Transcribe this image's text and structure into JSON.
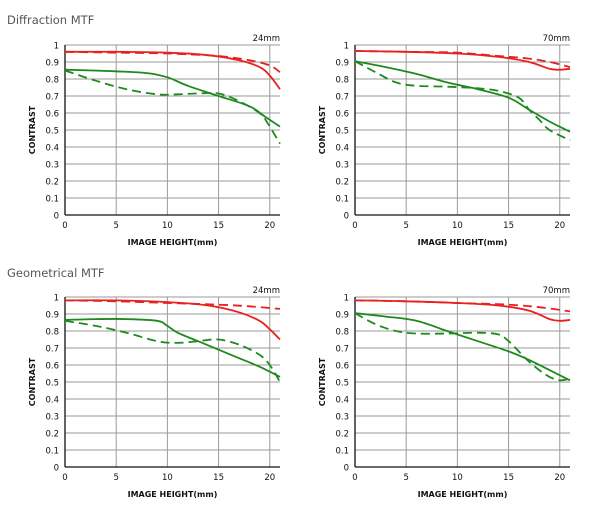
{
  "sections": {
    "diffraction": "Diffraction MTF",
    "geometrical": "Geometrical MTF"
  },
  "colors": {
    "red": "#e8201e",
    "green": "#1e8a1e",
    "grid": "#9a9a9a",
    "axis": "#111111"
  },
  "chart_data": [
    {
      "type": "line",
      "section": "Diffraction MTF",
      "focal": "24mm",
      "xlabel": "IMAGE HEIGHT(mm)",
      "ylabel": "CONTRAST",
      "xlim": [
        0,
        21
      ],
      "ylim": [
        0,
        1
      ],
      "xticks": [
        0,
        5,
        10,
        15,
        20
      ],
      "yticks": [
        0,
        0.1,
        0.2,
        0.3,
        0.4,
        0.5,
        0.6,
        0.7,
        0.8,
        0.9,
        1
      ],
      "series": [
        {
          "color": "red",
          "style": "solid",
          "x": [
            0,
            5,
            10,
            14,
            17,
            19,
            20,
            21
          ],
          "y": [
            0.96,
            0.96,
            0.955,
            0.94,
            0.91,
            0.87,
            0.82,
            0.74
          ]
        },
        {
          "color": "red",
          "style": "dashed",
          "x": [
            0,
            5,
            10,
            15,
            18,
            20,
            21
          ],
          "y": [
            0.96,
            0.955,
            0.95,
            0.935,
            0.91,
            0.88,
            0.84
          ]
        },
        {
          "color": "green",
          "style": "solid",
          "x": [
            0,
            5,
            8,
            10,
            12,
            15,
            18,
            19.5,
            21
          ],
          "y": [
            0.855,
            0.845,
            0.835,
            0.81,
            0.76,
            0.7,
            0.64,
            0.58,
            0.52
          ]
        },
        {
          "color": "green",
          "style": "dashed",
          "x": [
            0,
            3,
            6,
            9,
            11,
            13,
            15,
            17,
            19,
            19.8,
            20.5,
            21
          ],
          "y": [
            0.85,
            0.79,
            0.74,
            0.71,
            0.71,
            0.715,
            0.715,
            0.67,
            0.6,
            0.54,
            0.47,
            0.42
          ]
        }
      ]
    },
    {
      "type": "line",
      "section": "Diffraction MTF",
      "focal": "70mm",
      "xlabel": "IMAGE HEIGHT(mm)",
      "ylabel": "CONTRAST",
      "xlim": [
        0,
        21
      ],
      "ylim": [
        0,
        1
      ],
      "xticks": [
        0,
        5,
        10,
        15,
        20
      ],
      "yticks": [
        0,
        0.1,
        0.2,
        0.3,
        0.4,
        0.5,
        0.6,
        0.7,
        0.8,
        0.9,
        1
      ],
      "series": [
        {
          "color": "red",
          "style": "solid",
          "x": [
            0,
            5,
            10,
            14,
            17,
            19,
            20,
            21
          ],
          "y": [
            0.965,
            0.96,
            0.95,
            0.93,
            0.9,
            0.86,
            0.855,
            0.86
          ]
        },
        {
          "color": "red",
          "style": "dashed",
          "x": [
            0,
            5,
            10,
            14,
            17,
            19,
            21
          ],
          "y": [
            0.965,
            0.96,
            0.955,
            0.935,
            0.92,
            0.9,
            0.87
          ]
        },
        {
          "color": "green",
          "style": "solid",
          "x": [
            0,
            3,
            6,
            9,
            12,
            15,
            17,
            19,
            21
          ],
          "y": [
            0.905,
            0.87,
            0.83,
            0.78,
            0.74,
            0.69,
            0.62,
            0.55,
            0.49
          ]
        },
        {
          "color": "green",
          "style": "dashed",
          "x": [
            0,
            2,
            4,
            6,
            9,
            12,
            14,
            16,
            17,
            18,
            19,
            21
          ],
          "y": [
            0.905,
            0.84,
            0.78,
            0.76,
            0.755,
            0.745,
            0.73,
            0.69,
            0.62,
            0.56,
            0.5,
            0.44
          ]
        }
      ]
    },
    {
      "type": "line",
      "section": "Geometrical MTF",
      "focal": "24mm",
      "xlabel": "IMAGE HEIGHT(mm)",
      "ylabel": "CONTRAST",
      "xlim": [
        0,
        21
      ],
      "ylim": [
        0,
        1
      ],
      "xticks": [
        0,
        5,
        10,
        15,
        20
      ],
      "yticks": [
        0,
        0.1,
        0.2,
        0.3,
        0.4,
        0.5,
        0.6,
        0.7,
        0.8,
        0.9,
        1
      ],
      "series": [
        {
          "color": "red",
          "style": "solid",
          "x": [
            0,
            5,
            10,
            14,
            17,
            19,
            20,
            21
          ],
          "y": [
            0.98,
            0.98,
            0.97,
            0.95,
            0.91,
            0.86,
            0.81,
            0.75
          ]
        },
        {
          "color": "red",
          "style": "dashed",
          "x": [
            0,
            5,
            10,
            15,
            18,
            21
          ],
          "y": [
            0.98,
            0.975,
            0.965,
            0.955,
            0.945,
            0.93
          ]
        },
        {
          "color": "green",
          "style": "solid",
          "x": [
            0,
            3,
            6,
            9,
            10,
            11,
            13,
            15,
            17,
            19,
            21
          ],
          "y": [
            0.865,
            0.87,
            0.87,
            0.86,
            0.83,
            0.79,
            0.74,
            0.69,
            0.64,
            0.59,
            0.53
          ]
        },
        {
          "color": "green",
          "style": "dashed",
          "x": [
            0,
            3,
            6,
            9,
            11,
            13,
            15,
            17,
            19,
            20,
            21
          ],
          "y": [
            0.86,
            0.83,
            0.79,
            0.74,
            0.73,
            0.74,
            0.75,
            0.72,
            0.66,
            0.6,
            0.5
          ]
        }
      ]
    },
    {
      "type": "line",
      "section": "Geometrical MTF",
      "focal": "70mm",
      "xlabel": "IMAGE HEIGHT(mm)",
      "ylabel": "CONTRAST",
      "xlim": [
        0,
        21
      ],
      "ylim": [
        0,
        1
      ],
      "xticks": [
        0,
        5,
        10,
        15,
        20
      ],
      "yticks": [
        0,
        0.1,
        0.2,
        0.3,
        0.4,
        0.5,
        0.6,
        0.7,
        0.8,
        0.9,
        1
      ],
      "series": [
        {
          "color": "red",
          "style": "solid",
          "x": [
            0,
            5,
            10,
            14,
            17,
            19,
            20,
            21
          ],
          "y": [
            0.98,
            0.975,
            0.965,
            0.95,
            0.92,
            0.87,
            0.86,
            0.865
          ]
        },
        {
          "color": "red",
          "style": "dashed",
          "x": [
            0,
            5,
            10,
            15,
            18,
            21
          ],
          "y": [
            0.98,
            0.975,
            0.965,
            0.955,
            0.94,
            0.915
          ]
        },
        {
          "color": "green",
          "style": "solid",
          "x": [
            0,
            3,
            6,
            9,
            12,
            15,
            17,
            19,
            21
          ],
          "y": [
            0.905,
            0.885,
            0.86,
            0.8,
            0.74,
            0.68,
            0.63,
            0.57,
            0.51
          ]
        },
        {
          "color": "green",
          "style": "dashed",
          "x": [
            0,
            2,
            4,
            6,
            9,
            12,
            14,
            15,
            16,
            17,
            18,
            19,
            20,
            21
          ],
          "y": [
            0.905,
            0.84,
            0.8,
            0.785,
            0.785,
            0.79,
            0.78,
            0.74,
            0.68,
            0.62,
            0.57,
            0.53,
            0.51,
            0.52
          ]
        }
      ]
    }
  ]
}
